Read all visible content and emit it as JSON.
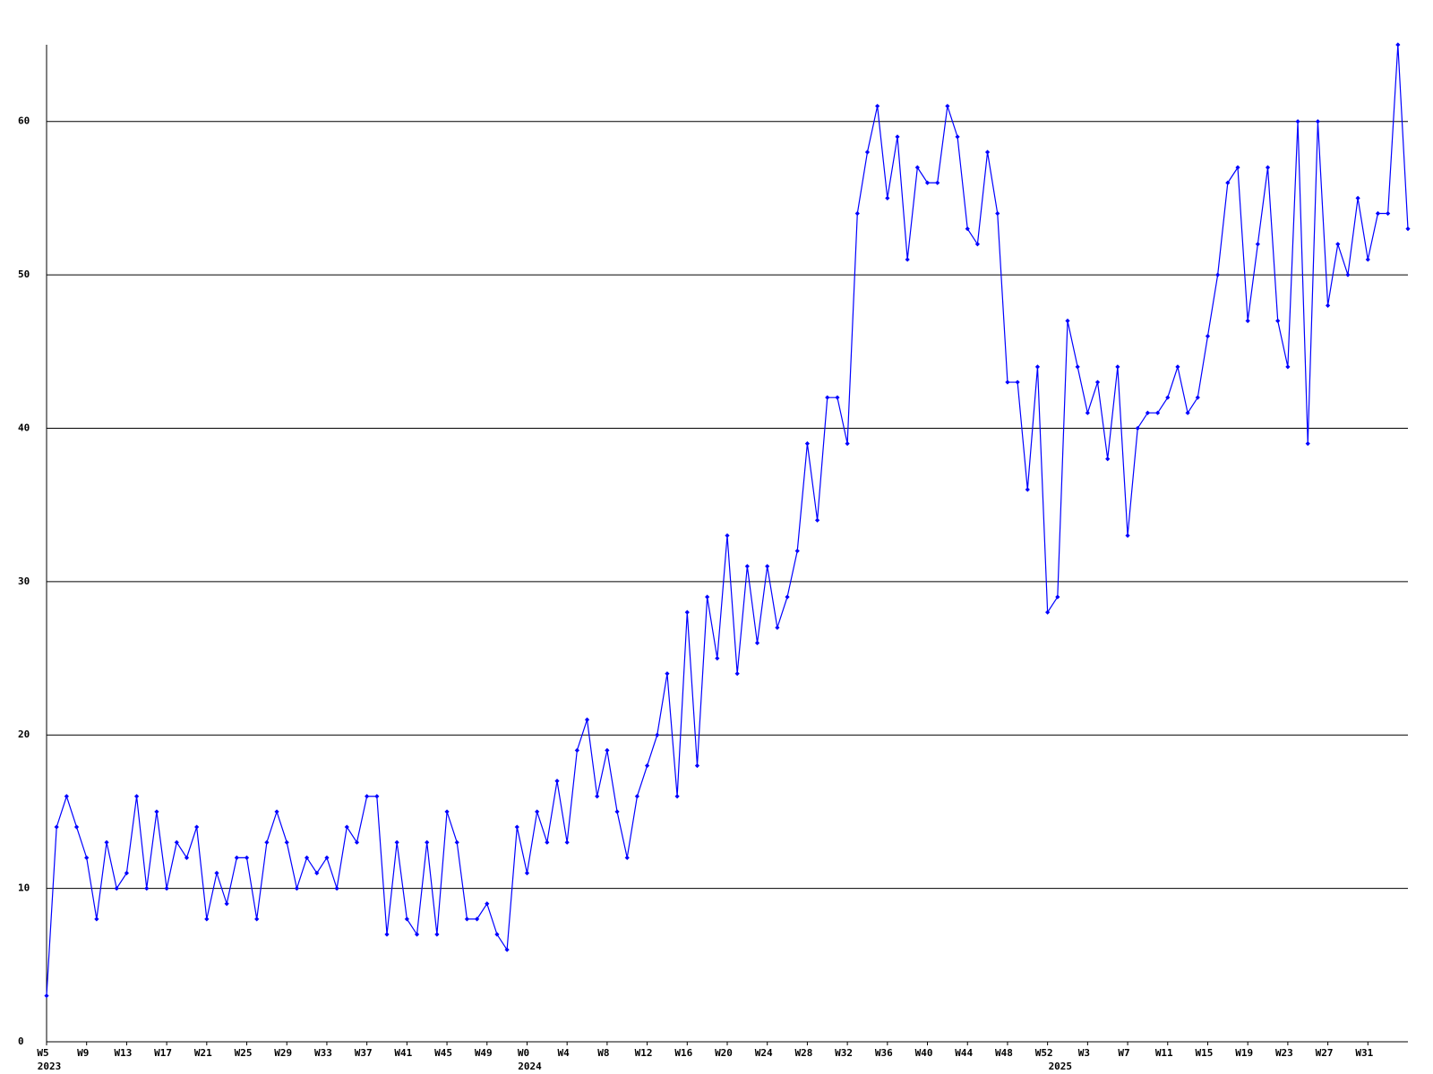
{
  "chart_data": {
    "type": "line",
    "categories": [
      "W5",
      null,
      null,
      null,
      "W9",
      null,
      null,
      null,
      "W13",
      null,
      null,
      null,
      "W17",
      null,
      null,
      null,
      "W21",
      null,
      null,
      null,
      "W25",
      null,
      null,
      null,
      "W29",
      null,
      null,
      null,
      "W33",
      null,
      null,
      null,
      "W37",
      null,
      null,
      null,
      "W41",
      null,
      null,
      null,
      "W45",
      null,
      null,
      null,
      "W49",
      null,
      null,
      null,
      "W0",
      null,
      null,
      null,
      "W4",
      null,
      null,
      null,
      "W8",
      null,
      null,
      null,
      "W12",
      null,
      null,
      null,
      "W16",
      null,
      null,
      null,
      "W20",
      null,
      null,
      null,
      "W24",
      null,
      null,
      null,
      "W28",
      null,
      null,
      null,
      "W32",
      null,
      null,
      null,
      "W36",
      null,
      null,
      null,
      "W40",
      null,
      null,
      null,
      "W44",
      null,
      null,
      null,
      "W48",
      null,
      null,
      null,
      "W52",
      null,
      null,
      null,
      "W3",
      null,
      null,
      null,
      "W7",
      null,
      null,
      null,
      "W11",
      null,
      null,
      null,
      "W15",
      null,
      null,
      null,
      "W19",
      null,
      null,
      null,
      "W23",
      null,
      null,
      null,
      "W27",
      null,
      null,
      null,
      "W31",
      null,
      null,
      null,
      null
    ],
    "category_years": [
      "2023",
      null,
      null,
      null,
      null,
      null,
      null,
      null,
      null,
      null,
      null,
      null,
      null,
      null,
      null,
      null,
      null,
      null,
      null,
      null,
      null,
      null,
      null,
      null,
      null,
      null,
      null,
      null,
      null,
      null,
      null,
      null,
      null,
      null,
      null,
      null,
      null,
      null,
      null,
      null,
      null,
      null,
      null,
      null,
      null,
      null,
      null,
      null,
      "2024",
      null,
      null,
      null,
      null,
      null,
      null,
      null,
      null,
      null,
      null,
      null,
      null,
      null,
      null,
      null,
      null,
      null,
      null,
      null,
      null,
      null,
      null,
      null,
      null,
      null,
      null,
      null,
      null,
      null,
      null,
      null,
      null,
      null,
      null,
      null,
      null,
      null,
      null,
      null,
      null,
      null,
      null,
      null,
      null,
      null,
      null,
      null,
      null,
      null,
      null,
      null,
      null,
      "2025",
      null,
      null,
      null,
      null,
      null,
      null,
      null,
      null,
      null,
      null,
      null,
      null,
      null,
      null,
      null,
      null,
      null,
      null,
      null,
      null,
      null,
      null,
      null,
      null,
      null,
      null,
      null,
      null,
      null,
      null,
      null,
      null,
      null,
      null,
      null
    ],
    "values": [
      3,
      14,
      16,
      14,
      12,
      8,
      13,
      10,
      11,
      16,
      10,
      15,
      10,
      13,
      12,
      14,
      8,
      11,
      9,
      12,
      12,
      8,
      13,
      15,
      13,
      10,
      12,
      11,
      12,
      10,
      14,
      13,
      16,
      16,
      7,
      13,
      8,
      7,
      13,
      7,
      15,
      13,
      8,
      8,
      9,
      7,
      6,
      14,
      11,
      15,
      13,
      17,
      13,
      19,
      21,
      16,
      19,
      15,
      12,
      16,
      18,
      20,
      24,
      16,
      28,
      18,
      29,
      25,
      33,
      24,
      31,
      26,
      31,
      27,
      29,
      32,
      39,
      34,
      42,
      42,
      39,
      54,
      58,
      61,
      55,
      59,
      51,
      57,
      56,
      56,
      61,
      59,
      53,
      52,
      58,
      54,
      43,
      43,
      36,
      44,
      28,
      29,
      47,
      44,
      41,
      43,
      38,
      44,
      33,
      40,
      41,
      41,
      42,
      44,
      41,
      42,
      46,
      50,
      56,
      57,
      47,
      52,
      57,
      47,
      44,
      60,
      39,
      60,
      48,
      52,
      50,
      55,
      51,
      54,
      54,
      65,
      53
    ],
    "color": "#0000ff",
    "ylim": [
      0,
      65
    ],
    "yticks": [
      0,
      10,
      20,
      30,
      40,
      50,
      60
    ],
    "grid": true
  }
}
